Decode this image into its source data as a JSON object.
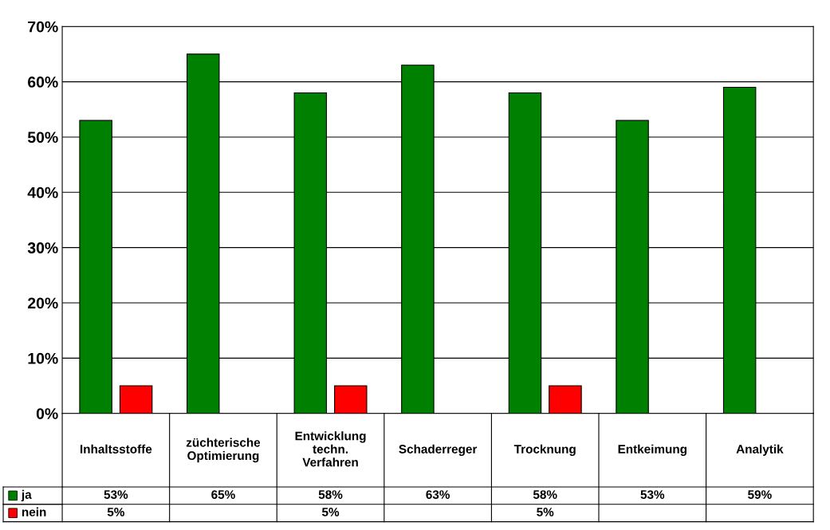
{
  "chart_data": {
    "type": "bar",
    "categories": [
      "Inhaltsstoffe",
      "züchterische\nOptimierung",
      "Entwicklung\ntechn.\nVerfahren",
      "Schaderreger",
      "Trocknung",
      "Entkeimung",
      "Analytik"
    ],
    "series": [
      {
        "name": "ja",
        "color": "#008000",
        "values": [
          53,
          65,
          58,
          63,
          58,
          53,
          59
        ],
        "value_labels": [
          "53%",
          "65%",
          "58%",
          "63%",
          "58%",
          "53%",
          "59%"
        ]
      },
      {
        "name": "nein",
        "color": "#ff0000",
        "values": [
          5,
          null,
          5,
          null,
          5,
          null,
          null
        ],
        "value_labels": [
          "5%",
          null,
          "5%",
          null,
          "5%",
          null,
          null
        ]
      }
    ],
    "ylim": [
      0,
      70
    ],
    "yticks": [
      {
        "value": 0,
        "label": "0%"
      },
      {
        "value": 10,
        "label": "10%"
      },
      {
        "value": 20,
        "label": "20%"
      },
      {
        "value": 30,
        "label": "30%"
      },
      {
        "value": 40,
        "label": "40%"
      },
      {
        "value": 50,
        "label": "50%"
      },
      {
        "value": 60,
        "label": "60%"
      },
      {
        "value": 70,
        "label": "70%"
      }
    ],
    "grid": "y",
    "legend": "bottom left"
  }
}
